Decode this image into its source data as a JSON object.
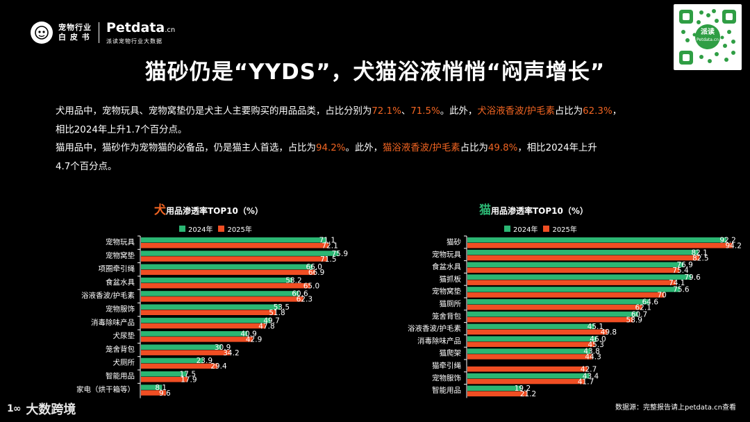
{
  "header": {
    "logo_cn": [
      "宠物行业",
      "白 皮 书"
    ],
    "brand_name": "Petdata",
    "brand_suffix": ".cn",
    "brand_sub": "派读宠物行业大数据",
    "qr_label": "派读",
    "qr_sublabel": "Petdata.cn"
  },
  "title": "猫砂仍是“YYDS”，犬猫浴液悄悄“闷声增长”",
  "description": {
    "p1a": "犬用品中，宠物玩具、宠物窝垫仍是犬主人主要购买的用品品类，占比分别为",
    "p1b": "72.1%",
    "p1c": "、",
    "p1d": "71.5%",
    "p1e": "。此外，",
    "p1f": "犬浴液香波/护毛素",
    "p1g": "占比为",
    "p1h": "62.3%",
    "p1i": "，",
    "p1j": "相比2024年上升1.7个百分点。",
    "p2a": "猫用品中，猫砂作为宠物猫的必备品，仍是猫主人首选，占比为",
    "p2b": "94.2%",
    "p2c": "。此外，",
    "p2d": "猫浴液香波/护毛素",
    "p2e": "占比为",
    "p2f": "49.8%",
    "p2g": "，相比2024年上升",
    "p2h": "4.7个百分点。"
  },
  "colors": {
    "series_2024": "#2bb673",
    "series_2025": "#f04e23",
    "highlight": "#f26522",
    "axis": "#ffffff"
  },
  "chart_data": [
    {
      "type": "bar",
      "orientation": "horizontal",
      "title_prefix": "犬",
      "title": "用品渗透率TOP10（%）",
      "legend": [
        "2024年",
        "2025年"
      ],
      "categories": [
        "宠物玩具",
        "宠物窝垫",
        "项圈牵引绳",
        "食盆水具",
        "浴液香波/护毛素",
        "宠物服饰",
        "消毒除味产品",
        "犬尿垫",
        "笼舍背包",
        "犬厕所",
        "智能用品",
        "家电（烘干箱等）"
      ],
      "series": [
        {
          "name": "2024年",
          "values": [
            71.1,
            75.9,
            66.0,
            58.2,
            60.6,
            53.5,
            49.7,
            40.9,
            30.9,
            23.9,
            17.5,
            8.1
          ]
        },
        {
          "name": "2025年",
          "values": [
            72.1,
            71.5,
            66.9,
            65.0,
            62.3,
            51.8,
            47.8,
            42.9,
            34.2,
            29.4,
            17.9,
            9.6
          ]
        }
      ],
      "value_labels": [
        [
          "71.1",
          "75.9",
          "66.0",
          "58.2",
          "60.6",
          "53.5",
          "49.7",
          "40.9",
          "30.9",
          "23.9",
          "17.5",
          "8.1"
        ],
        [
          "72.1",
          "71.5",
          "66.9",
          "65.0",
          "62.3",
          "51.8",
          "47.8",
          "42.9",
          "34.2",
          "29.4",
          "17.9",
          "9.6"
        ]
      ],
      "xlim": [
        0,
        100
      ]
    },
    {
      "type": "bar",
      "orientation": "horizontal",
      "title_prefix": "猫",
      "title": "用品渗透率TOP10（%）",
      "legend": [
        "2024年",
        "2025年"
      ],
      "categories": [
        "猫砂",
        "宠物玩具",
        "食盆水具",
        "猫抓板",
        "宠物窝垫",
        "猫厕所",
        "笼舍背包",
        "浴液香波/护毛素",
        "消毒除味产品",
        "猫爬架",
        "猫牵引绳",
        "宠物服饰",
        "智能用品"
      ],
      "series": [
        {
          "name": "2024年",
          "values": [
            92.2,
            82.1,
            76.9,
            79.6,
            75.6,
            64.6,
            60.7,
            45.1,
            46.0,
            43.8,
            null,
            43.4,
            19.2
          ]
        },
        {
          "name": "2025年",
          "values": [
            94.2,
            82.5,
            75.4,
            74.1,
            70,
            62.1,
            58.9,
            49.8,
            45.3,
            44.3,
            42.7,
            41.7,
            21.2
          ]
        }
      ],
      "value_labels": [
        [
          "92.2",
          "82.1",
          "76.9",
          "79.6",
          "75.6",
          "64.6",
          "60.7",
          "45.1",
          "46.0",
          "43.8",
          "",
          "43.4",
          "19.2"
        ],
        [
          "94.2",
          "82.5",
          "75.4",
          "74.1",
          "70",
          "62.1",
          "58.9",
          "49.8",
          "45.3",
          "44.3",
          "42.7",
          "41.7",
          "21.2"
        ]
      ],
      "xlim": [
        0,
        100
      ]
    }
  ],
  "footer": {
    "source": "数据源：完整报告请上petdata.cn查看",
    "watermark_mark": "1∞",
    "watermark_text": "大数跨境"
  }
}
